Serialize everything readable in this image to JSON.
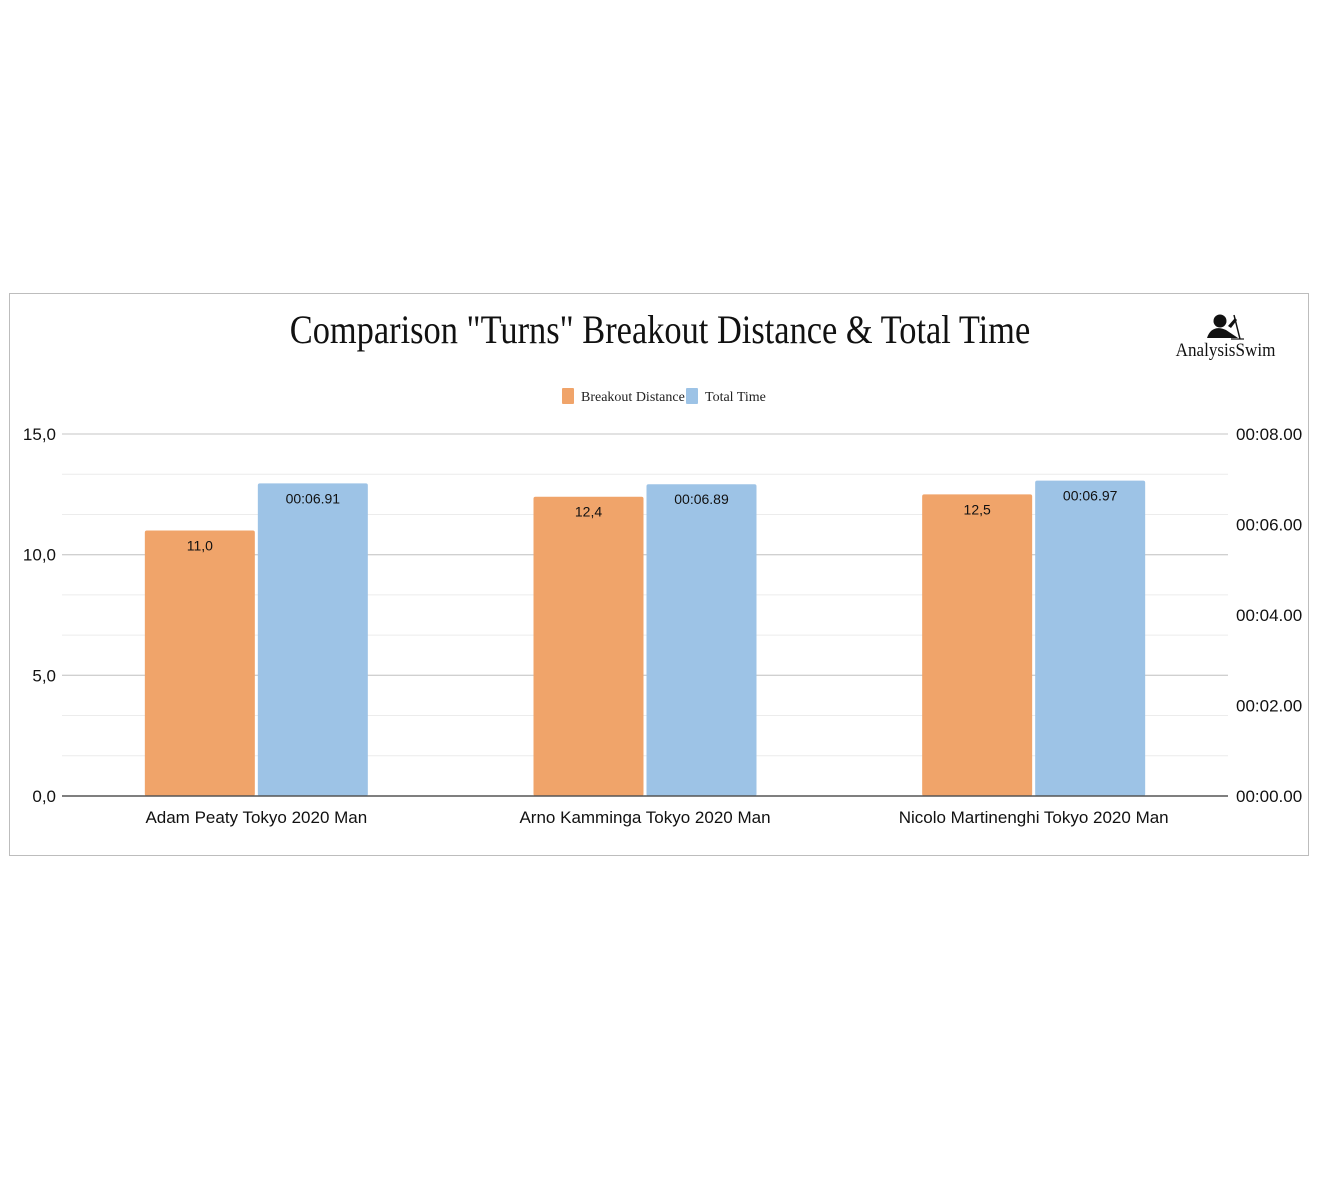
{
  "chart_data": {
    "type": "bar",
    "title": "Comparison \"Turns\" Breakout Distance & Total Time",
    "categories": [
      "Adam Peaty Tokyo 2020 Man",
      "Arno Kamminga Tokyo 2020 Man",
      "Nicolo Martinenghi Tokyo 2020 Man"
    ],
    "series": [
      {
        "name": "Breakout Distance",
        "axis": "left",
        "color": "#f0a46a",
        "values": [
          11.0,
          12.4,
          12.5
        ],
        "labels": [
          "11,0",
          "12,4",
          "12,5"
        ]
      },
      {
        "name": "Total Time",
        "axis": "right",
        "color": "#9dc3e6",
        "values": [
          6.91,
          6.89,
          6.97
        ],
        "labels": [
          "00:06.91",
          "00:06.89",
          "00:06.97"
        ]
      }
    ],
    "y_left": {
      "ylim": [
        0,
        15
      ],
      "ticks": [
        0,
        5,
        10,
        15
      ],
      "tick_labels": [
        "0,0",
        "5,0",
        "10,0",
        "15,0"
      ]
    },
    "y_right": {
      "ylim": [
        0,
        8
      ],
      "ticks": [
        0,
        2,
        4,
        6,
        8
      ],
      "tick_labels": [
        "00:00.00",
        "00:02.00",
        "00:04.00",
        "00:06.00",
        "00:08.00"
      ]
    },
    "grid": true,
    "legend": "top-center"
  },
  "logo": {
    "text": "AnalysisSwim",
    "icon": "swimmer-icon"
  }
}
